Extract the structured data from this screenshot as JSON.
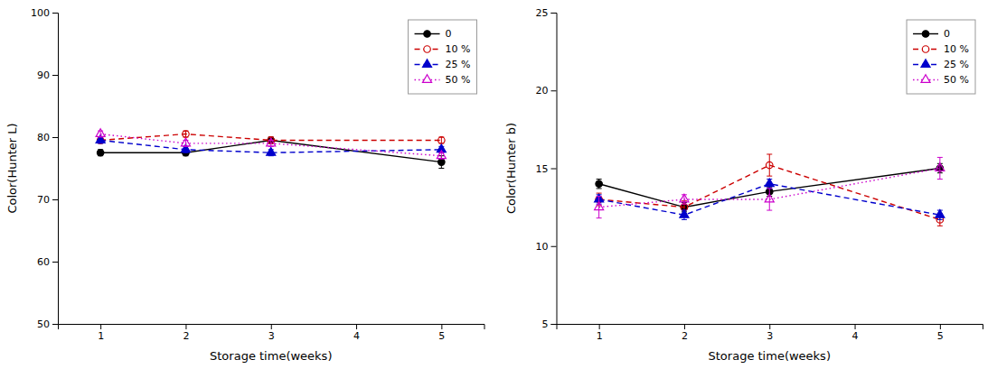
{
  "chart_data": [
    {
      "type": "line",
      "xlabel": "Storage time(weeks)",
      "ylabel": "Color(Hunter L)",
      "x": [
        1,
        2,
        3,
        5
      ],
      "xlim": [
        0.5,
        5.5
      ],
      "xticks": [
        1,
        2,
        3,
        4,
        5
      ],
      "ylim": [
        50,
        100
      ],
      "yticks": [
        50,
        60,
        70,
        80,
        90,
        100
      ],
      "grid": false,
      "legend": "upper right",
      "series": [
        {
          "name": "0",
          "color": "#000000",
          "line_style": "solid",
          "marker": "circle",
          "values": [
            77.5,
            77.5,
            79.5,
            76.0
          ],
          "errors": [
            0.5,
            0.5,
            0.5,
            1.0
          ]
        },
        {
          "name": "10 %",
          "color": "#cc0000",
          "line_style": "dashed",
          "marker": "circle-open",
          "values": [
            79.5,
            80.5,
            79.5,
            79.5
          ],
          "errors": [
            0.5,
            0.5,
            0.5,
            0.5
          ]
        },
        {
          "name": "25 %",
          "color": "#0000cc",
          "line_style": "dashed",
          "marker": "triangle",
          "values": [
            79.5,
            78.0,
            77.5,
            78.0
          ],
          "errors": [
            0.5,
            0.5,
            0.5,
            0.5
          ]
        },
        {
          "name": "50 %",
          "color": "#cc00cc",
          "line_style": "dotted",
          "marker": "triangle-open",
          "values": [
            80.5,
            79.0,
            79.0,
            77.0
          ],
          "errors": [
            0.5,
            0.5,
            0.5,
            0.5
          ]
        }
      ]
    },
    {
      "type": "line",
      "xlabel": "Storage time(weeks)",
      "ylabel": "Color(Hunter b)",
      "x": [
        1,
        2,
        3,
        5
      ],
      "xlim": [
        0.5,
        5.5
      ],
      "xticks": [
        1,
        2,
        3,
        4,
        5
      ],
      "ylim": [
        5,
        25
      ],
      "yticks": [
        5,
        10,
        15,
        20,
        25
      ],
      "grid": false,
      "legend": "upper right",
      "series": [
        {
          "name": "0",
          "color": "#000000",
          "line_style": "solid",
          "marker": "circle",
          "values": [
            14.0,
            12.5,
            13.5,
            15.0
          ],
          "errors": [
            0.3,
            0.3,
            0.3,
            0.3
          ]
        },
        {
          "name": "10 %",
          "color": "#cc0000",
          "line_style": "dashed",
          "marker": "circle-open",
          "values": [
            13.0,
            12.5,
            15.2,
            11.7
          ],
          "errors": [
            0.4,
            0.4,
            0.7,
            0.4
          ]
        },
        {
          "name": "25 %",
          "color": "#0000cc",
          "line_style": "dashed",
          "marker": "triangle",
          "values": [
            13.0,
            12.0,
            14.0,
            12.0
          ],
          "errors": [
            0.3,
            0.3,
            0.3,
            0.3
          ]
        },
        {
          "name": "50 %",
          "color": "#cc00cc",
          "line_style": "dotted",
          "marker": "triangle-open",
          "values": [
            12.5,
            13.0,
            13.0,
            15.0
          ],
          "errors": [
            0.7,
            0.3,
            0.7,
            0.7
          ]
        }
      ]
    }
  ]
}
